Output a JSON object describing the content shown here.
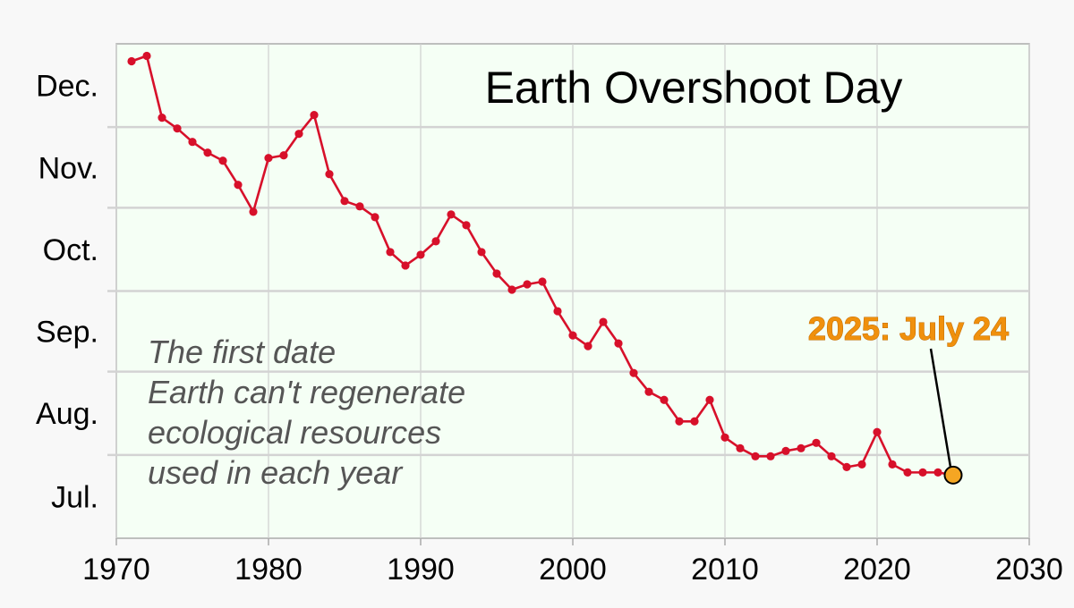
{
  "chart_data": {
    "type": "line",
    "title": "Earth Overshoot Day",
    "xlabel": "",
    "ylabel": "",
    "xlim": [
      1970,
      2030
    ],
    "x_ticks": [
      "1970",
      "1980",
      "1990",
      "2000",
      "2010",
      "2020",
      "2030"
    ],
    "y_month_labels": [
      "Dec.",
      "Nov.",
      "Oct.",
      "Sep.",
      "Aug.",
      "Jul."
    ],
    "ylim": [
      "Jul. 1",
      "Dec. 31"
    ],
    "grid": true,
    "annotation": [
      "The first date",
      "Earth can't regenerate",
      "ecological resources",
      "used in each year"
    ],
    "callout": {
      "label": "2025: July 24",
      "year": 2025,
      "date": "Jul. 24"
    },
    "series": [
      {
        "color": "#d7102a",
        "points": [
          {
            "x": 1971,
            "y": "Dec. 25"
          },
          {
            "x": 1972,
            "y": "Dec. 27"
          },
          {
            "x": 1973,
            "y": "Dec. 4"
          },
          {
            "x": 1974,
            "y": "Nov. 30"
          },
          {
            "x": 1975,
            "y": "Nov. 25"
          },
          {
            "x": 1976,
            "y": "Nov. 21"
          },
          {
            "x": 1977,
            "y": "Nov. 18"
          },
          {
            "x": 1978,
            "y": "Nov. 9"
          },
          {
            "x": 1979,
            "y": "Oct. 30"
          },
          {
            "x": 1980,
            "y": "Nov. 19"
          },
          {
            "x": 1981,
            "y": "Nov. 20"
          },
          {
            "x": 1982,
            "y": "Nov. 28"
          },
          {
            "x": 1983,
            "y": "Dec. 5"
          },
          {
            "x": 1984,
            "y": "Nov. 13"
          },
          {
            "x": 1985,
            "y": "Nov. 3"
          },
          {
            "x": 1986,
            "y": "Nov. 1"
          },
          {
            "x": 1987,
            "y": "Oct. 28"
          },
          {
            "x": 1988,
            "y": "Oct. 15"
          },
          {
            "x": 1989,
            "y": "Oct. 10"
          },
          {
            "x": 1990,
            "y": "Oct. 14"
          },
          {
            "x": 1991,
            "y": "Oct. 19"
          },
          {
            "x": 1992,
            "y": "Oct. 29"
          },
          {
            "x": 1993,
            "y": "Oct. 25"
          },
          {
            "x": 1994,
            "y": "Oct. 15"
          },
          {
            "x": 1995,
            "y": "Oct. 7"
          },
          {
            "x": 1996,
            "y": "Oct. 1"
          },
          {
            "x": 1997,
            "y": "Oct. 3"
          },
          {
            "x": 1998,
            "y": "Oct. 4"
          },
          {
            "x": 1999,
            "y": "Sep. 23"
          },
          {
            "x": 2000,
            "y": "Sep. 14"
          },
          {
            "x": 2001,
            "y": "Sep. 10"
          },
          {
            "x": 2002,
            "y": "Sep. 19"
          },
          {
            "x": 2003,
            "y": "Sep. 11"
          },
          {
            "x": 2004,
            "y": "Aug. 31"
          },
          {
            "x": 2005,
            "y": "Aug. 24"
          },
          {
            "x": 2006,
            "y": "Aug. 21"
          },
          {
            "x": 2007,
            "y": "Aug. 13"
          },
          {
            "x": 2008,
            "y": "Aug. 13"
          },
          {
            "x": 2009,
            "y": "Aug. 21"
          },
          {
            "x": 2010,
            "y": "Aug. 7"
          },
          {
            "x": 2011,
            "y": "Aug. 3"
          },
          {
            "x": 2012,
            "y": "Jul. 31"
          },
          {
            "x": 2013,
            "y": "Jul. 31"
          },
          {
            "x": 2014,
            "y": "Aug. 2"
          },
          {
            "x": 2015,
            "y": "Aug. 3"
          },
          {
            "x": 2016,
            "y": "Aug. 5"
          },
          {
            "x": 2017,
            "y": "Jul. 31"
          },
          {
            "x": 2018,
            "y": "Jul. 27"
          },
          {
            "x": 2019,
            "y": "Jul. 28"
          },
          {
            "x": 2020,
            "y": "Aug. 9"
          },
          {
            "x": 2021,
            "y": "Jul. 28"
          },
          {
            "x": 2022,
            "y": "Jul. 25"
          },
          {
            "x": 2023,
            "y": "Jul. 25"
          },
          {
            "x": 2024,
            "y": "Jul. 25"
          },
          {
            "x": 2025,
            "y": "Jul. 24"
          }
        ]
      }
    ]
  }
}
